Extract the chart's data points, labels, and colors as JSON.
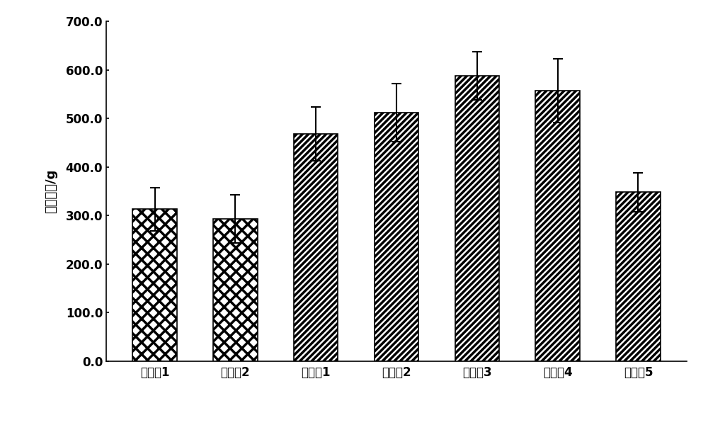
{
  "categories": [
    "实施例1",
    "实施例2",
    "对比例1",
    "对比例2",
    "对比例3",
    "对比例4",
    "对比例5"
  ],
  "values": [
    313.0,
    293.0,
    468.0,
    512.0,
    588.0,
    557.0,
    348.0
  ],
  "errors": [
    45.0,
    50.0,
    55.0,
    60.0,
    50.0,
    65.0,
    40.0
  ],
  "ylabel": "饥干酥性/g",
  "ylim": [
    0.0,
    700.0
  ],
  "yticks": [
    0.0,
    100.0,
    200.0,
    300.0,
    400.0,
    500.0,
    600.0,
    700.0
  ],
  "hatch_crosshatch": [
    "实施例1",
    "实施例2"
  ],
  "hatch_diagonal": [
    "对比例1",
    "对比例2",
    "对比例3",
    "对比例4",
    "对比例5"
  ],
  "background_color": "#ffffff",
  "bar_edge_color": "#000000",
  "bar_fill_color": "#ffffff",
  "fig_width": 10.0,
  "fig_height": 6.0,
  "dpi": 100
}
